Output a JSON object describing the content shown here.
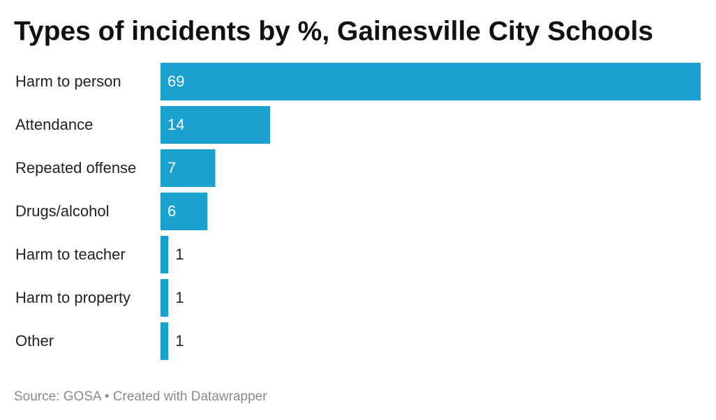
{
  "chart_data": {
    "type": "bar",
    "orientation": "horizontal",
    "title": "Types of incidents by %, Gainesville City Schools",
    "categories": [
      "Harm to person",
      "Attendance",
      "Repeated offense",
      "Drugs/alcohol",
      "Harm to teacher",
      "Harm to property",
      "Other"
    ],
    "values": [
      69,
      14,
      7,
      6,
      1,
      1,
      1
    ],
    "color": "#1aa1cf",
    "footer": "Source: GOSA • Created with Datawrapper"
  }
}
